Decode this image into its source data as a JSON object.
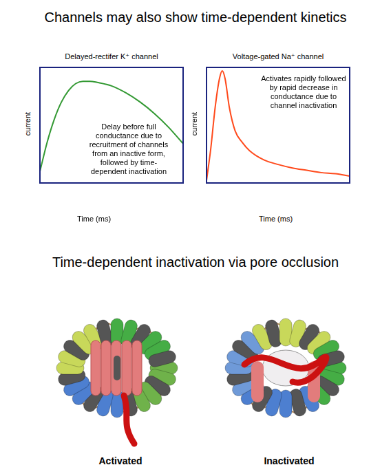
{
  "header": {
    "title": "Channels may also show time-dependent kinetics"
  },
  "chart_data": [
    {
      "type": "line",
      "title": "Delayed-rectifer K⁺ channel",
      "x_label": "Time (ms)",
      "y_label": "current",
      "annotation": "Delay before full conductance due to recruitment of channels from an inactive form, followed by time-dependent inactivation",
      "x": [
        0,
        5,
        10,
        15,
        20,
        25,
        30,
        35,
        40,
        50,
        60,
        70,
        80,
        90,
        100
      ],
      "values": [
        10,
        35,
        55,
        70,
        80,
        86,
        88,
        88,
        87,
        84,
        78,
        70,
        60,
        48,
        34
      ],
      "color": "#339933",
      "xlim": [
        0,
        100
      ],
      "ylim": [
        0,
        100
      ],
      "tick_labels": false,
      "grid": false
    },
    {
      "type": "line",
      "title": "Voltage-gated Na⁺ channel",
      "x_label": "Time (ms)",
      "y_label": "current",
      "annotation": "Activates rapidly followed by rapid decrease in conductance due to channel inactivation",
      "x": [
        0,
        3,
        6,
        9,
        11,
        13,
        16,
        20,
        25,
        30,
        40,
        50,
        60,
        70,
        80,
        90,
        100
      ],
      "values": [
        2,
        30,
        65,
        90,
        97,
        90,
        65,
        45,
        35,
        28,
        20,
        16,
        13,
        11,
        9,
        8,
        6
      ],
      "color": "#ff4a1c",
      "xlim": [
        0,
        100
      ],
      "ylim": [
        0,
        100
      ],
      "tick_labels": false,
      "grid": false
    }
  ],
  "figure": {
    "title": "Time-dependent inactivation via pore occlusion",
    "panels": [
      {
        "label": "Activated"
      },
      {
        "label": "Inactivated"
      }
    ]
  }
}
